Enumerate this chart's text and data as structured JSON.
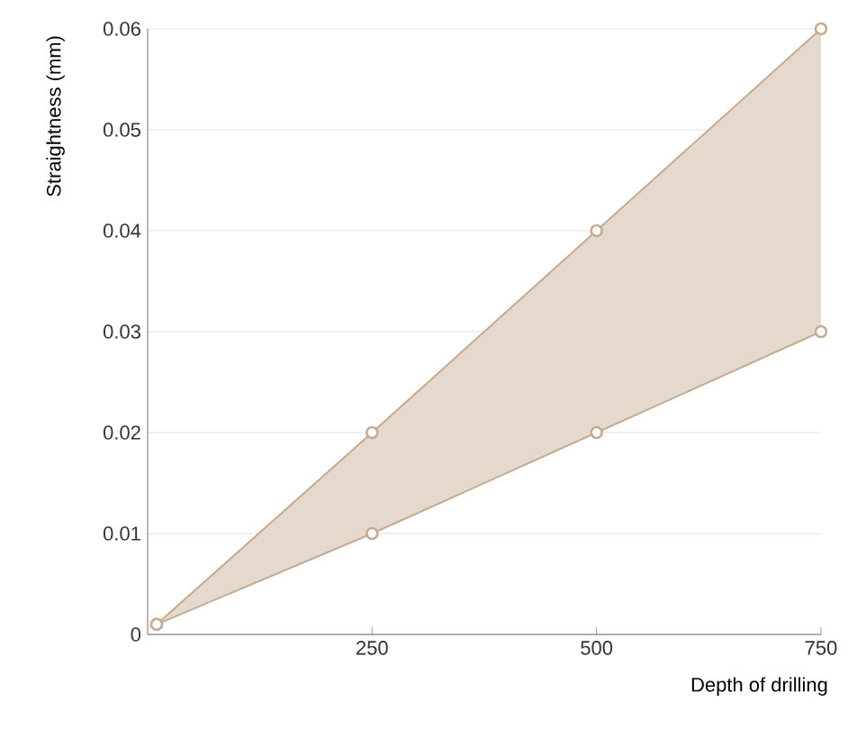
{
  "chart_data": {
    "type": "line",
    "xlabel": "Depth of drilling",
    "ylabel": "Straightness (mm)",
    "x": [
      10,
      250,
      500,
      750
    ],
    "series": [
      {
        "color": "#c6aa92",
        "values": [
          0.001,
          0.02,
          0.04,
          0.06
        ],
        "lower": [
          0.001,
          0.01,
          0.02,
          0.03
        ],
        "upper": [
          0.001,
          0.02,
          0.04,
          0.06
        ]
      },
      {
        "color": "#c6aa92",
        "values": [
          0.001,
          0.01,
          0.02,
          0.03
        ]
      }
    ],
    "xlim": [
      0,
      750
    ],
    "ylim": [
      0,
      0.06
    ],
    "xticks": [
      250,
      500,
      750
    ],
    "yticks": [
      0,
      0.01,
      0.02,
      0.03,
      0.04,
      0.05,
      0.06
    ],
    "grid": "y",
    "marker": "circle"
  }
}
